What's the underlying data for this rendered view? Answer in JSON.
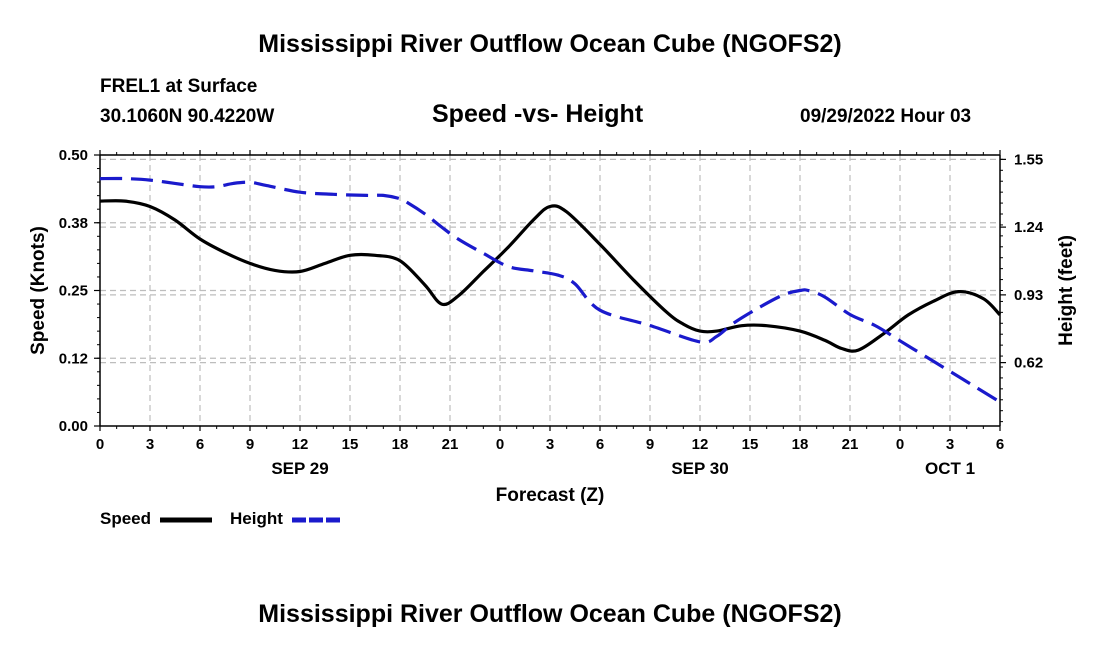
{
  "header": {
    "title": "Mississippi River Outflow Ocean Cube (NGOFS2)",
    "station": "FREL1 at Surface",
    "coordinates": "30.1060N  90.4220W",
    "subtitle": "Speed -vs- Height",
    "datetime": "09/29/2022 Hour 03"
  },
  "footer": {
    "title": "Mississippi River Outflow Ocean Cube (NGOFS2)"
  },
  "legend": {
    "speed_label": "Speed",
    "height_label": "Height"
  },
  "colors": {
    "speed": "#000000",
    "height": "#1a1acc",
    "grid": "#bdbdbd"
  },
  "chart_data": {
    "type": "line",
    "xlabel": "Forecast (Z)",
    "ylabel_left": "Speed (Knots)",
    "ylabel_right": "Height (feet)",
    "x_range": [
      0,
      54
    ],
    "x_ticks": [
      0,
      3,
      6,
      9,
      12,
      15,
      18,
      21,
      24,
      27,
      30,
      33,
      36,
      39,
      42,
      45,
      48,
      51,
      54
    ],
    "x_tick_labels": [
      "0",
      "3",
      "6",
      "9",
      "12",
      "15",
      "18",
      "21",
      "0",
      "3",
      "6",
      "9",
      "12",
      "15",
      "18",
      "21",
      "0",
      "3",
      "6"
    ],
    "date_labels": [
      {
        "x": 12,
        "label": "SEP 29"
      },
      {
        "x": 36,
        "label": "SEP 30"
      },
      {
        "x": 51,
        "label": "OCT 1"
      }
    ],
    "ylim_left": [
      0,
      0.5
    ],
    "yticks_left": [
      0.0,
      0.125,
      0.25,
      0.375,
      0.5
    ],
    "ytick_labels_left": [
      "0.00",
      "0.12",
      "0.25",
      "0.38",
      "0.50"
    ],
    "ylim_right": [
      0.33,
      1.57
    ],
    "yticks_right": [
      0.62,
      0.93,
      1.24,
      1.55
    ],
    "ytick_labels_right": [
      "0.62",
      "0.93",
      "1.24",
      "1.55"
    ],
    "grid": true,
    "series": [
      {
        "name": "Speed",
        "axis": "left",
        "style": "solid",
        "x": [
          0,
          1.5,
          3,
          4.5,
          6,
          7.5,
          9,
          10.5,
          12,
          13.5,
          15,
          16.5,
          18,
          19.5,
          20.5,
          21.5,
          23,
          24.5,
          26,
          27,
          28,
          30,
          32,
          34,
          35,
          36,
          37,
          38.5,
          40,
          42,
          43.5,
          44.5,
          45.5,
          47,
          48.5,
          50,
          51.5,
          53,
          54
        ],
        "values": [
          0.415,
          0.415,
          0.405,
          0.38,
          0.345,
          0.32,
          0.3,
          0.287,
          0.285,
          0.3,
          0.315,
          0.315,
          0.305,
          0.26,
          0.225,
          0.24,
          0.285,
          0.33,
          0.38,
          0.405,
          0.395,
          0.335,
          0.27,
          0.21,
          0.188,
          0.175,
          0.175,
          0.185,
          0.185,
          0.175,
          0.158,
          0.143,
          0.14,
          0.17,
          0.205,
          0.23,
          0.248,
          0.235,
          0.205
        ]
      },
      {
        "name": "Height",
        "axis": "right",
        "style": "dashed",
        "x": [
          0,
          1.5,
          3,
          4.5,
          6,
          7,
          8,
          9,
          10,
          12,
          14,
          16,
          17,
          18,
          18.5,
          19.5,
          20.5,
          21.5,
          23,
          24.5,
          26,
          27.5,
          28.5,
          30,
          33,
          36,
          37,
          38,
          39.5,
          41,
          42,
          42.5,
          43.5,
          45,
          46.5,
          48,
          49.5,
          51,
          52.5,
          54
        ],
        "values": [
          1.462,
          1.462,
          1.455,
          1.44,
          1.425,
          1.425,
          1.44,
          1.445,
          1.43,
          1.4,
          1.39,
          1.385,
          1.385,
          1.37,
          1.35,
          1.3,
          1.24,
          1.185,
          1.12,
          1.06,
          1.04,
          1.02,
          0.98,
          0.86,
          0.79,
          0.715,
          0.74,
          0.8,
          0.87,
          0.93,
          0.95,
          0.95,
          0.92,
          0.84,
          0.79,
          0.72,
          0.65,
          0.58,
          0.51,
          0.44
        ]
      }
    ]
  }
}
